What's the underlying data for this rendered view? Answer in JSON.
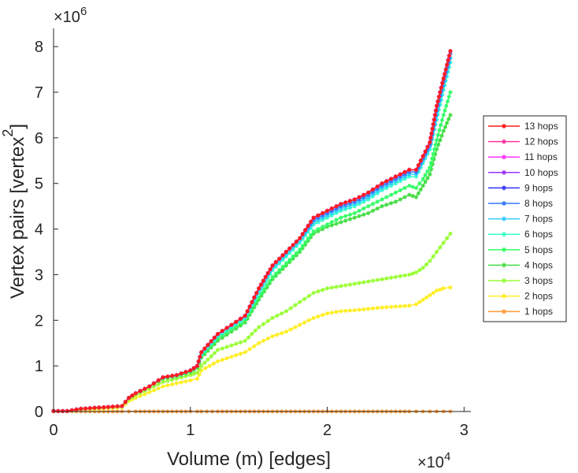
{
  "chart_data": {
    "type": "line",
    "title": "",
    "xlabel": "Volume (m) [edges]",
    "ylabel": "Vertex pairs [vertex",
    "ylabel_sup": "2",
    "ylabel_close": "]",
    "x_multiplier": {
      "base": "×10",
      "exp": "4"
    },
    "y_multiplier": {
      "base": "×10",
      "exp": "6"
    },
    "x_ticks": [
      0,
      1,
      2,
      3
    ],
    "y_ticks": [
      0,
      1,
      2,
      3,
      4,
      5,
      6,
      7,
      8
    ],
    "xlim": [
      0,
      3.05
    ],
    "ylim": [
      0,
      8.4
    ],
    "x_units": "×10^4 edges",
    "y_units": "×10^6 vertex^2",
    "legend_position": "right",
    "x": [
      0.0,
      0.1,
      0.2,
      0.3,
      0.4,
      0.5,
      0.55,
      0.6,
      0.7,
      0.8,
      0.9,
      1.0,
      1.05,
      1.08,
      1.2,
      1.3,
      1.4,
      1.5,
      1.6,
      1.7,
      1.8,
      1.9,
      2.0,
      2.1,
      2.2,
      2.3,
      2.4,
      2.5,
      2.6,
      2.65,
      2.7,
      2.75,
      2.8,
      2.85,
      2.9
    ],
    "series": [
      {
        "name": "13 hops",
        "color": "#ff1a1a",
        "values": [
          0.01,
          0.01,
          0.06,
          0.08,
          0.1,
          0.12,
          0.3,
          0.4,
          0.55,
          0.75,
          0.8,
          0.9,
          1.0,
          1.3,
          1.7,
          1.9,
          2.1,
          2.7,
          3.2,
          3.5,
          3.8,
          4.25,
          4.4,
          4.55,
          4.65,
          4.8,
          5.0,
          5.15,
          5.3,
          5.3,
          5.6,
          5.9,
          6.7,
          7.3,
          7.9
        ]
      },
      {
        "name": "12 hops",
        "color": "#ff3399",
        "values": [
          0.01,
          0.01,
          0.06,
          0.08,
          0.1,
          0.12,
          0.3,
          0.4,
          0.55,
          0.75,
          0.8,
          0.9,
          1.0,
          1.3,
          1.7,
          1.9,
          2.1,
          2.7,
          3.2,
          3.5,
          3.8,
          4.25,
          4.4,
          4.55,
          4.65,
          4.8,
          5.0,
          5.15,
          5.3,
          5.3,
          5.6,
          5.9,
          6.7,
          7.3,
          7.9
        ]
      },
      {
        "name": "11 hops",
        "color": "#ff33ff",
        "values": [
          0.01,
          0.01,
          0.06,
          0.08,
          0.1,
          0.12,
          0.3,
          0.4,
          0.55,
          0.75,
          0.8,
          0.9,
          1.0,
          1.3,
          1.7,
          1.9,
          2.1,
          2.7,
          3.2,
          3.5,
          3.8,
          4.25,
          4.4,
          4.55,
          4.65,
          4.8,
          5.0,
          5.15,
          5.3,
          5.3,
          5.6,
          5.9,
          6.7,
          7.3,
          7.9
        ]
      },
      {
        "name": "10 hops",
        "color": "#9933ff",
        "values": [
          0.01,
          0.01,
          0.06,
          0.08,
          0.1,
          0.12,
          0.3,
          0.4,
          0.55,
          0.75,
          0.8,
          0.9,
          1.0,
          1.3,
          1.7,
          1.9,
          2.1,
          2.7,
          3.2,
          3.5,
          3.8,
          4.25,
          4.4,
          4.55,
          4.65,
          4.8,
          5.0,
          5.15,
          5.3,
          5.3,
          5.6,
          5.9,
          6.7,
          7.3,
          7.9
        ]
      },
      {
        "name": "9 hops",
        "color": "#3333ff",
        "values": [
          0.01,
          0.01,
          0.06,
          0.08,
          0.1,
          0.12,
          0.3,
          0.4,
          0.55,
          0.75,
          0.8,
          0.9,
          1.0,
          1.3,
          1.7,
          1.9,
          2.1,
          2.7,
          3.2,
          3.5,
          3.8,
          4.25,
          4.4,
          4.55,
          4.65,
          4.8,
          5.0,
          5.15,
          5.3,
          5.3,
          5.6,
          5.9,
          6.7,
          7.3,
          7.9
        ]
      },
      {
        "name": "8 hops",
        "color": "#3377ff",
        "values": [
          0.01,
          0.01,
          0.06,
          0.08,
          0.1,
          0.12,
          0.3,
          0.4,
          0.55,
          0.75,
          0.8,
          0.9,
          1.0,
          1.3,
          1.7,
          1.9,
          2.1,
          2.7,
          3.2,
          3.5,
          3.8,
          4.2,
          4.35,
          4.5,
          4.6,
          4.75,
          4.95,
          5.1,
          5.25,
          5.25,
          5.55,
          5.85,
          6.6,
          7.25,
          7.85
        ]
      },
      {
        "name": "7 hops",
        "color": "#33ccff",
        "values": [
          0.01,
          0.01,
          0.06,
          0.08,
          0.1,
          0.12,
          0.3,
          0.4,
          0.55,
          0.75,
          0.8,
          0.9,
          1.0,
          1.28,
          1.68,
          1.88,
          2.08,
          2.66,
          3.15,
          3.45,
          3.75,
          4.15,
          4.3,
          4.45,
          4.55,
          4.7,
          4.9,
          5.05,
          5.2,
          5.2,
          5.5,
          5.8,
          6.5,
          7.15,
          7.75
        ]
      },
      {
        "name": "6 hops",
        "color": "#33ffcc",
        "values": [
          0.01,
          0.01,
          0.06,
          0.08,
          0.1,
          0.12,
          0.3,
          0.4,
          0.55,
          0.75,
          0.8,
          0.9,
          1.0,
          1.25,
          1.65,
          1.85,
          2.05,
          2.6,
          3.1,
          3.4,
          3.7,
          4.1,
          4.25,
          4.4,
          4.5,
          4.65,
          4.85,
          5.0,
          5.15,
          5.15,
          5.45,
          5.75,
          6.4,
          7.05,
          7.65
        ]
      },
      {
        "name": "5 hops",
        "color": "#33ff66",
        "values": [
          0.01,
          0.01,
          0.06,
          0.08,
          0.1,
          0.12,
          0.3,
          0.4,
          0.55,
          0.73,
          0.78,
          0.88,
          0.98,
          1.22,
          1.6,
          1.8,
          2.0,
          2.5,
          2.95,
          3.25,
          3.55,
          3.95,
          4.1,
          4.25,
          4.35,
          4.5,
          4.65,
          4.8,
          4.95,
          4.9,
          5.1,
          5.35,
          5.95,
          6.5,
          7.0
        ]
      },
      {
        "name": "4 hops",
        "color": "#44dd44",
        "values": [
          0.01,
          0.01,
          0.06,
          0.08,
          0.1,
          0.12,
          0.3,
          0.4,
          0.55,
          0.72,
          0.77,
          0.86,
          0.96,
          1.18,
          1.55,
          1.75,
          1.95,
          2.45,
          2.9,
          3.2,
          3.5,
          3.9,
          4.05,
          4.15,
          4.25,
          4.35,
          4.5,
          4.6,
          4.75,
          4.7,
          4.95,
          5.2,
          5.75,
          6.15,
          6.5
        ]
      },
      {
        "name": "3 hops",
        "color": "#99ff33",
        "values": [
          0.01,
          0.01,
          0.05,
          0.07,
          0.09,
          0.11,
          0.27,
          0.36,
          0.5,
          0.65,
          0.72,
          0.8,
          0.85,
          1.0,
          1.35,
          1.45,
          1.55,
          1.85,
          2.05,
          2.2,
          2.4,
          2.6,
          2.7,
          2.75,
          2.8,
          2.85,
          2.9,
          2.95,
          3.0,
          3.05,
          3.15,
          3.3,
          3.5,
          3.7,
          3.9
        ]
      },
      {
        "name": "2 hops",
        "color": "#ffee22",
        "values": [
          0.01,
          0.01,
          0.04,
          0.05,
          0.07,
          0.09,
          0.23,
          0.3,
          0.42,
          0.55,
          0.62,
          0.68,
          0.72,
          0.9,
          1.1,
          1.2,
          1.3,
          1.5,
          1.65,
          1.75,
          1.9,
          2.05,
          2.15,
          2.2,
          2.22,
          2.25,
          2.28,
          2.3,
          2.32,
          2.35,
          2.45,
          2.55,
          2.65,
          2.7,
          2.72
        ]
      },
      {
        "name": "1 hops",
        "color": "#ff9933",
        "values": [
          0.001,
          0.001,
          0.001,
          0.001,
          0.001,
          0.001,
          0.001,
          0.001,
          0.001,
          0.001,
          0.001,
          0.001,
          0.001,
          0.001,
          0.001,
          0.001,
          0.001,
          0.001,
          0.001,
          0.001,
          0.001,
          0.001,
          0.001,
          0.001,
          0.001,
          0.001,
          0.001,
          0.001,
          0.001,
          0.001,
          0.001,
          0.001,
          0.001,
          0.001,
          0.001
        ]
      }
    ]
  }
}
